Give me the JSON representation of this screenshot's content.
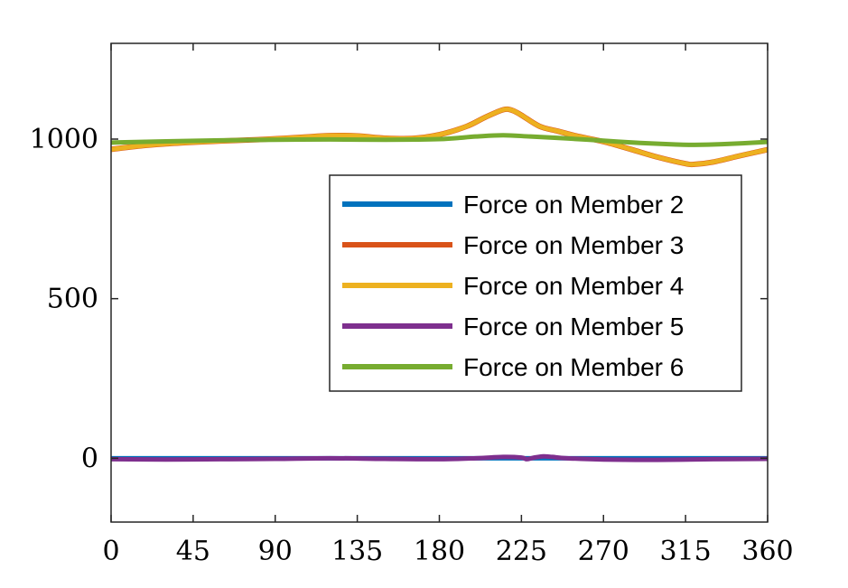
{
  "chart_data": {
    "type": "line",
    "title": "",
    "xlabel": "",
    "ylabel": "",
    "xlim": [
      0,
      360
    ],
    "ylim": [
      -200,
      1300
    ],
    "xticks": [
      0,
      45,
      90,
      135,
      180,
      225,
      270,
      315,
      360
    ],
    "yticks": [
      0,
      500,
      1000
    ],
    "xtick_labels": [
      "0",
      "45",
      "90",
      "135",
      "180",
      "225",
      "270",
      "315",
      "360"
    ],
    "ytick_labels": [
      "0",
      "500",
      "1000"
    ],
    "grid": false,
    "legend_position": "center-right",
    "series": [
      {
        "name": "Force on Member 2",
        "color": "#0072BD",
        "x": [
          0,
          45,
          90,
          135,
          180,
          225,
          270,
          315,
          360
        ],
        "values": [
          0,
          0,
          0,
          0,
          0,
          0,
          0,
          0,
          0
        ]
      },
      {
        "name": "Force on Member 3",
        "color": "#D95319",
        "x": [
          0,
          15,
          30,
          45,
          60,
          75,
          90,
          105,
          120,
          135,
          150,
          165,
          180,
          195,
          205,
          215,
          220,
          225,
          235,
          245,
          255,
          270,
          285,
          300,
          315,
          320,
          330,
          345,
          360
        ],
        "values": [
          968,
          978,
          985,
          990,
          994,
          997,
          1001,
          1006,
          1011,
          1010,
          1003,
          1002,
          1014,
          1040,
          1068,
          1092,
          1090,
          1075,
          1040,
          1025,
          1010,
          992,
          968,
          943,
          923,
          921,
          928,
          948,
          967
        ]
      },
      {
        "name": "Force on Member 4",
        "color": "#EDB120",
        "x": [
          0,
          15,
          30,
          45,
          60,
          75,
          90,
          105,
          120,
          135,
          150,
          165,
          180,
          195,
          205,
          215,
          220,
          225,
          235,
          245,
          255,
          270,
          285,
          300,
          315,
          320,
          330,
          345,
          360
        ],
        "values": [
          968,
          978,
          985,
          990,
          994,
          997,
          1001,
          1006,
          1011,
          1010,
          1003,
          1002,
          1014,
          1040,
          1068,
          1092,
          1090,
          1075,
          1040,
          1025,
          1010,
          992,
          968,
          943,
          923,
          921,
          928,
          948,
          967
        ]
      },
      {
        "name": "Force on Member 5",
        "color": "#7E2F8E",
        "x": [
          0,
          30,
          60,
          90,
          120,
          150,
          180,
          200,
          215,
          225,
          228,
          232,
          237,
          242,
          250,
          270,
          300,
          330,
          360
        ],
        "values": [
          -3,
          -4,
          -3,
          -2,
          0,
          -2,
          -3,
          0,
          4,
          2,
          -3,
          2,
          6,
          4,
          0,
          -4,
          -5,
          -3,
          -2
        ]
      },
      {
        "name": "Force on Member 6",
        "color": "#77AC30",
        "x": [
          0,
          30,
          60,
          90,
          120,
          150,
          180,
          200,
          215,
          230,
          250,
          270,
          290,
          310,
          320,
          335,
          360
        ],
        "values": [
          989,
          993,
          996,
          998,
          999,
          998,
          1000,
          1008,
          1012,
          1008,
          1002,
          995,
          988,
          983,
          982,
          984,
          991
        ]
      }
    ]
  }
}
